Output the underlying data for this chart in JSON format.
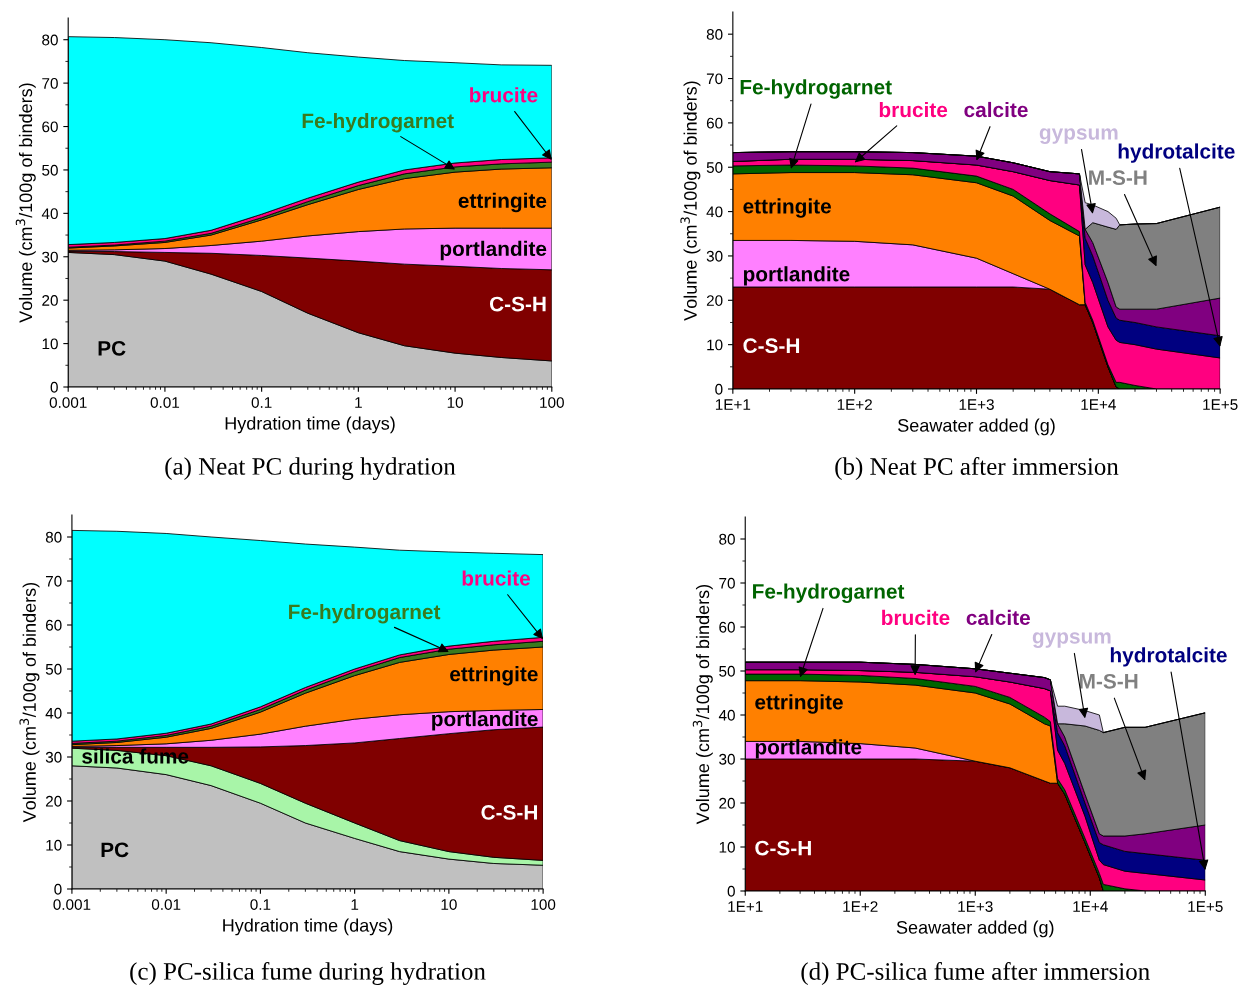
{
  "chart_data": [
    {
      "type": "area",
      "stacked": true,
      "xlabel": "Hydration time (days)",
      "ylabel": "Volume (cm$^{3}$/100g of binders)",
      "log": "x",
      "grid": false,
      "legend": false,
      "annotations": [
        "(a) Neat PC during hydration"
      ],
      "x": [
        0.001,
        0.003,
        0.01,
        0.03,
        0.1,
        0.3,
        1,
        3,
        10,
        30,
        100
      ],
      "xlim": [
        0.001,
        100
      ],
      "xticks": [
        0.001,
        0.01,
        0.1,
        1,
        10,
        100
      ],
      "ylim": [
        0,
        85
      ],
      "yticks": [
        0,
        10,
        20,
        30,
        40,
        50,
        60,
        70,
        80
      ],
      "series": [
        {
          "name": "PC",
          "color": "#c0c0c0",
          "values": [
            31,
            30.5,
            29,
            26,
            22,
            17,
            12.5,
            9.5,
            7.8,
            6.8,
            6
          ]
        },
        {
          "name": "C-S-H",
          "color": "#800000",
          "values": [
            0.3,
            0.7,
            2,
            4.8,
            8.3,
            12.7,
            16.5,
            18.8,
            20,
            20.5,
            21
          ]
        },
        {
          "name": "portlandite",
          "color": "#ff80ff",
          "values": [
            0.2,
            0.4,
            0.9,
            1.8,
            3.3,
            5.1,
            6.8,
            8.1,
            8.8,
            9.3,
            9.6
          ]
        },
        {
          "name": "ettringite",
          "color": "#ff8000",
          "values": [
            0.5,
            0.9,
            1.4,
            2.4,
            4.9,
            7.2,
            9.7,
            11.6,
            12.9,
            13.6,
            13.9
          ]
        },
        {
          "name": "Fe-hydrogarnet",
          "color": "#3a7a1e",
          "values": [
            0.2,
            0.2,
            0.3,
            0.4,
            0.5,
            0.7,
            0.9,
            1.1,
            1.2,
            1.2,
            1.3
          ]
        },
        {
          "name": "brucite",
          "color": "#ff0080",
          "values": [
            0.6,
            0.6,
            0.6,
            0.7,
            0.8,
            0.8,
            0.8,
            0.9,
            0.9,
            1.0,
            1.0
          ]
        },
        {
          "color": "#00ffff",
          "values": [
            47.9,
            47.2,
            45.8,
            43.2,
            38.4,
            33.5,
            28.8,
            25.2,
            23.1,
            21.8,
            21.3
          ]
        }
      ]
    },
    {
      "type": "area",
      "stacked": true,
      "xlabel": "Seawater added (g)",
      "ylabel": "Volume (cm$^{3}$/100g of binders)",
      "log": "x",
      "grid": false,
      "legend": false,
      "annotations": [
        "(b) Neat PC after immersion"
      ],
      "x": [
        10,
        30,
        100,
        300,
        1000,
        2000,
        4000,
        7000,
        7800,
        9000,
        12000,
        14000,
        15000,
        20000,
        30000,
        100000
      ],
      "xlim": [
        10,
        100000
      ],
      "xticks": [
        {
          "value": 10,
          "label": "1E+1"
        },
        {
          "value": 100,
          "label": "1E+2"
        },
        {
          "value": 1000,
          "label": "1E+3"
        },
        {
          "value": 10000,
          "label": "1E+4"
        },
        {
          "value": 100000,
          "label": "1E+5"
        }
      ],
      "ylim": [
        0,
        85
      ],
      "yticks": [
        0,
        10,
        20,
        30,
        40,
        50,
        60,
        70,
        80
      ],
      "series": [
        {
          "name": "C-S-H",
          "color": "#800000",
          "values": [
            23,
            23,
            23,
            23,
            23,
            23,
            22.5,
            19,
            19,
            15,
            5,
            0.5,
            0,
            0,
            0,
            0
          ]
        },
        {
          "name": "portlandite",
          "color": "#ff80ff",
          "values": [
            10.5,
            10.5,
            10.3,
            9.5,
            6.5,
            3,
            0,
            0,
            0,
            0,
            0,
            0,
            0,
            0,
            0,
            0
          ]
        },
        {
          "name": "ettringite",
          "color": "#ff8000",
          "values": [
            15,
            15.3,
            15.5,
            15.8,
            17,
            17.5,
            15.5,
            15.5,
            0,
            0,
            0,
            0,
            0,
            0,
            0,
            0
          ]
        },
        {
          "name": "Fe-hydrogarnet",
          "color": "#006400",
          "values": [
            1.8,
            1.7,
            1.5,
            1.5,
            1.5,
            1.5,
            1.5,
            1,
            0.5,
            0.5,
            0.5,
            1,
            1.5,
            0.8,
            0,
            0
          ]
        },
        {
          "name": "brucite",
          "color": "#ff0080",
          "values": [
            1,
            1.3,
            1.5,
            1.7,
            2.5,
            4,
            7.5,
            10.5,
            8.5,
            8.5,
            8.5,
            9.5,
            9,
            9.2,
            9,
            7
          ]
        },
        {
          "name": "hydrotalcite",
          "color": "#000080",
          "values": [
            0,
            0,
            0,
            0,
            0,
            0,
            0,
            0,
            6,
            6,
            6,
            5,
            5,
            5,
            5,
            5
          ]
        },
        {
          "name": "calcite",
          "color": "#800080",
          "values": [
            2,
            1.7,
            1.7,
            1.8,
            2,
            2,
            2,
            2.5,
            2,
            3,
            4,
            2.5,
            2.5,
            3,
            4,
            8.5
          ]
        },
        {
          "name": "M-S-H",
          "color": "#808080",
          "values": [
            0,
            0,
            0,
            0,
            0,
            0,
            0,
            0,
            0,
            4.5,
            12.5,
            17.5,
            19,
            19.2,
            19.3,
            20.5
          ]
        },
        {
          "name": "gypsum",
          "color": "#c8b8dc",
          "values": [
            0,
            0,
            0,
            0,
            0,
            0,
            0,
            0,
            6,
            4,
            3.5,
            2.5,
            0,
            0,
            0,
            0
          ]
        }
      ]
    },
    {
      "type": "area",
      "stacked": true,
      "xlabel": "Hydration time (days)",
      "ylabel": "Volume (cm$^{3}$/100g of binders)",
      "log": "x",
      "grid": false,
      "legend": false,
      "annotations": [
        "(c) PC-silica fume during hydration"
      ],
      "x": [
        0.001,
        0.003,
        0.01,
        0.03,
        0.1,
        0.3,
        1,
        3,
        10,
        30,
        100
      ],
      "xlim": [
        0.001,
        100
      ],
      "xticks": [
        0.001,
        0.01,
        0.1,
        1,
        10,
        100
      ],
      "ylim": [
        0,
        85
      ],
      "yticks": [
        0,
        10,
        20,
        30,
        40,
        50,
        60,
        70,
        80
      ],
      "series": [
        {
          "name": "PC",
          "color": "#c0c0c0",
          "values": [
            28,
            27.5,
            26,
            23.5,
            19.5,
            15,
            11.5,
            8.5,
            6.8,
            5.8,
            5.4
          ]
        },
        {
          "name": "silica fume",
          "color": "#a8f5a8",
          "values": [
            4,
            4,
            4.3,
            4.5,
            4.5,
            4.5,
            3.5,
            2.5,
            1.7,
            1.4,
            1.1
          ]
        },
        {
          "name": "C-S-H",
          "color": "#800000",
          "values": [
            0.2,
            0.7,
            1.9,
            4.2,
            8.3,
            13.1,
            18.2,
            23.2,
            26.8,
            29,
            30.3
          ]
        },
        {
          "name": "portlandite",
          "color": "#ff80ff",
          "values": [
            0.2,
            0.4,
            0.8,
            1.6,
            2.9,
            4.4,
            5.4,
            5.4,
            5,
            4.4,
            4
          ]
        },
        {
          "name": "ettringite",
          "color": "#ff8000",
          "values": [
            0.4,
            0.7,
            1.5,
            2.7,
            5,
            7.5,
            9.9,
            11.9,
            13,
            13.7,
            14.2
          ]
        },
        {
          "name": "Fe-hydrogarnet",
          "color": "#3a7a1e",
          "values": [
            0.3,
            0.3,
            0.4,
            0.5,
            0.6,
            0.7,
            0.9,
            1.1,
            1.2,
            1.2,
            1.3
          ]
        },
        {
          "name": "brucite",
          "color": "#ff0080",
          "values": [
            0.5,
            0.5,
            0.5,
            0.5,
            0.6,
            0.6,
            0.6,
            0.6,
            0.7,
            0.8,
            0.9
          ]
        },
        {
          "color": "#00ffff",
          "values": [
            47.9,
            47.2,
            45.4,
            42.5,
            37.8,
            32.6,
            27.7,
            23.8,
            21.4,
            20,
            18.8
          ]
        }
      ]
    },
    {
      "type": "area",
      "stacked": true,
      "xlabel": "Seawater added (g)",
      "ylabel": "Volume (cm$^{3}$/100g of binders)",
      "log": "x",
      "grid": false,
      "legend": false,
      "annotations": [
        "(d) PC-silica fume after immersion"
      ],
      "x": [
        10,
        30,
        100,
        300,
        1000,
        2000,
        4000,
        4500,
        5200,
        6000,
        9000,
        12000,
        13000,
        20000,
        30000,
        100000
      ],
      "xlim": [
        10,
        100000
      ],
      "xticks": [
        {
          "value": 10,
          "label": "1E+1"
        },
        {
          "value": 100,
          "label": "1E+2"
        },
        {
          "value": 1000,
          "label": "1E+3"
        },
        {
          "value": 10000,
          "label": "1E+4"
        },
        {
          "value": 100000,
          "label": "1E+5"
        }
      ],
      "ylim": [
        0,
        85
      ],
      "yticks": [
        0,
        10,
        20,
        30,
        40,
        50,
        60,
        70,
        80
      ],
      "series": [
        {
          "name": "C-S-H",
          "color": "#800000",
          "values": [
            30,
            30,
            30,
            30,
            29.5,
            28,
            25,
            24.5,
            24.5,
            22,
            11,
            3,
            0,
            0,
            0,
            0
          ]
        },
        {
          "name": "portlandite",
          "color": "#ff80ff",
          "values": [
            4,
            4,
            3.5,
            2.5,
            0,
            0,
            0,
            0,
            0,
            0,
            0,
            0,
            0,
            0,
            0,
            0
          ]
        },
        {
          "name": "ettringite",
          "color": "#ff8000",
          "values": [
            13.8,
            13.8,
            14,
            14.3,
            15.5,
            14.5,
            13,
            13,
            0,
            0,
            0,
            0,
            0,
            0,
            0,
            0
          ]
        },
        {
          "name": "Fe-hydrogarnet",
          "color": "#006400",
          "values": [
            1.5,
            1.5,
            1.5,
            1.5,
            1.5,
            1.5,
            1.5,
            1,
            1,
            1,
            1,
            1,
            1.5,
            0.5,
            0,
            0
          ]
        },
        {
          "name": "brucite",
          "color": "#ff0080",
          "values": [
            1,
            1,
            1.1,
            1.4,
            2.2,
            3.5,
            6.5,
            7,
            6.5,
            6,
            5,
            3,
            4.5,
            4,
            4,
            2.5
          ]
        },
        {
          "name": "hydrotalcite",
          "color": "#000080",
          "values": [
            0,
            0,
            0,
            0,
            0,
            0,
            0,
            0,
            4,
            4,
            3,
            4,
            4.5,
            4.5,
            4.5,
            4.5
          ]
        },
        {
          "name": "calcite",
          "color": "#800080",
          "values": [
            1.7,
            1.7,
            1.9,
            1.8,
            1.8,
            2,
            2.5,
            2.5,
            2,
            2,
            2,
            2,
            2,
            3.5,
            4.5,
            8
          ]
        },
        {
          "name": "M-S-H",
          "color": "#808080",
          "values": [
            0,
            0,
            0,
            0,
            0,
            0,
            0,
            0,
            0,
            3,
            15.5,
            23.5,
            23.5,
            24.7,
            24.2,
            25.5
          ]
        },
        {
          "name": "gypsum",
          "color": "#c8b8dc",
          "values": [
            0,
            0,
            0,
            0,
            0,
            0,
            0,
            0,
            4,
            4,
            3.5,
            3.5,
            0,
            0,
            0,
            0
          ]
        }
      ]
    }
  ]
}
